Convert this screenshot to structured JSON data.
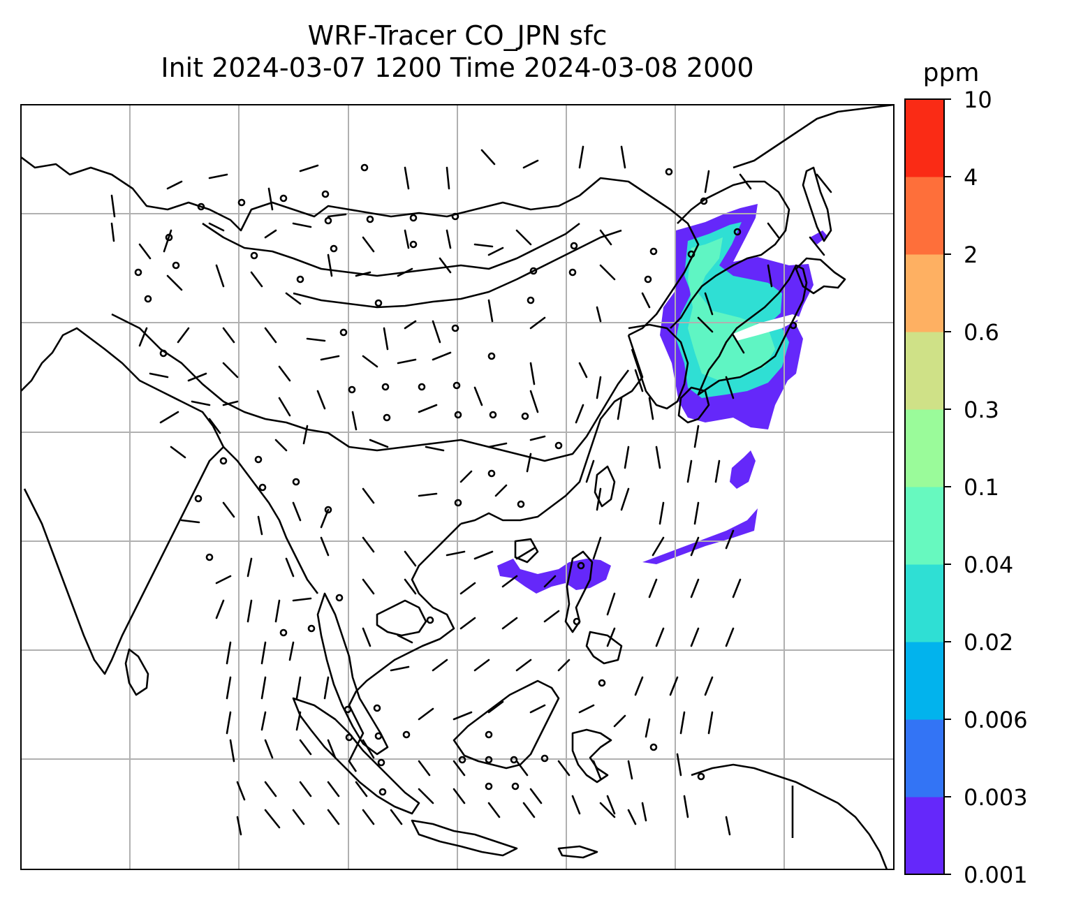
{
  "title": {
    "line1": "WRF-Tracer CO_JPN sfc",
    "line2": "Init 2024-03-07 1200 Time 2024-03-08 2000"
  },
  "colorbar": {
    "unit": "ppm",
    "ticks": [
      "0.001",
      "0.003",
      "0.006",
      "0.02",
      "0.04",
      "0.1",
      "0.3",
      "0.6",
      "2",
      "4",
      "10"
    ],
    "colors": [
      "#6528fa",
      "#3374f5",
      "#02b3ed",
      "#2fdfd4",
      "#67f9bf",
      "#9afb9a",
      "#cfe187",
      "#feb062",
      "#fe6f3a",
      "#fa2b15"
    ]
  },
  "map": {
    "grid_color": "#b0b0b0",
    "coastline_color": "#000000",
    "tracer_region": "Japan"
  }
}
